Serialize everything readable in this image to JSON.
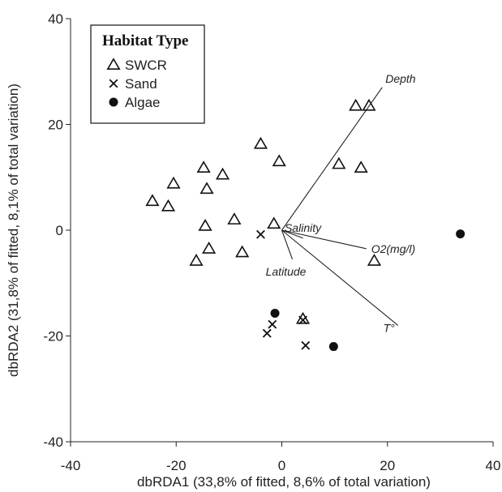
{
  "chart_data": {
    "type": "scatter",
    "xlabel": "dbRDA1 (33,8% of fitted, 8,6% of total variation)",
    "ylabel": "dbRDA2 (31,8% of fitted, 8,1% of total variation)",
    "xlim": [
      -40,
      40
    ],
    "ylim": [
      -40,
      40
    ],
    "xticks": [
      -40,
      -20,
      0,
      20,
      40
    ],
    "yticks": [
      -40,
      -20,
      0,
      20,
      40
    ],
    "grid": false,
    "legend": {
      "title": "Habitat Type",
      "position": "top-left",
      "entries": [
        "SWCR",
        "Sand",
        "Algae"
      ]
    },
    "series": [
      {
        "name": "SWCR",
        "marker": "open-triangle",
        "points": [
          [
            -24.5,
            5.5
          ],
          [
            -21.5,
            4.5
          ],
          [
            -20.5,
            8.8
          ],
          [
            -14.8,
            11.8
          ],
          [
            -14.2,
            7.8
          ],
          [
            -11.2,
            10.5
          ],
          [
            -14.5,
            0.8
          ],
          [
            -13.8,
            -3.5
          ],
          [
            -16.2,
            -5.8
          ],
          [
            -9,
            2
          ],
          [
            -7.5,
            -4.2
          ],
          [
            -4,
            16.3
          ],
          [
            -0.5,
            13
          ],
          [
            -1.5,
            1.2
          ],
          [
            4,
            -16.8
          ],
          [
            10.8,
            12.5
          ],
          [
            15,
            11.8
          ],
          [
            14,
            23.5
          ],
          [
            16.5,
            23.5
          ],
          [
            17.5,
            -5.8
          ]
        ]
      },
      {
        "name": "Sand",
        "marker": "cross",
        "points": [
          [
            -4,
            -0.8
          ],
          [
            -1.8,
            -17.8
          ],
          [
            -2.8,
            -19.5
          ],
          [
            4,
            -17
          ],
          [
            4.5,
            -21.8
          ]
        ]
      },
      {
        "name": "Algae",
        "marker": "filled-circle",
        "points": [
          [
            -1.3,
            -15.7
          ],
          [
            9.8,
            -22
          ],
          [
            33.8,
            -0.7
          ]
        ]
      }
    ],
    "vectors": [
      {
        "name": "Depth",
        "x": 19,
        "y": 27
      },
      {
        "name": "Salinity",
        "x": 4,
        "y": -1.5
      },
      {
        "name": "O2(mg/l)",
        "x": 16,
        "y": -3.5
      },
      {
        "name": "Latitude",
        "x": 2,
        "y": -5.5
      },
      {
        "name": "T°",
        "x": 22,
        "y": -18
      }
    ]
  }
}
